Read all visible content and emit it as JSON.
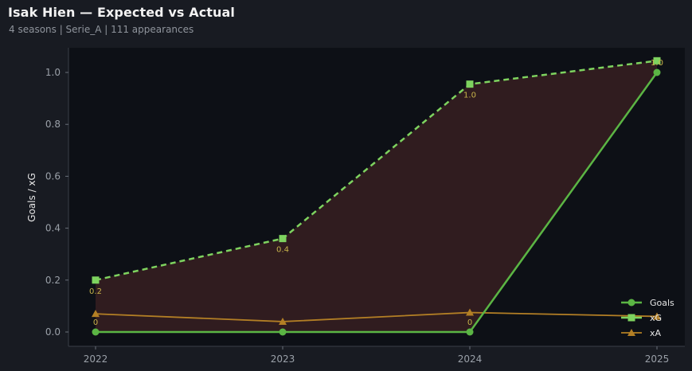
{
  "header": {
    "title": "Isak Hien — Expected vs Actual",
    "subtitle": "4 seasons | Serie_A | 111 appearances"
  },
  "colors": {
    "background": "#181b22",
    "plot_background": "#0d1016",
    "goals": "#5bb544",
    "xg": "#7ed35f",
    "xa": "#b37f25",
    "gap_fill": "#3a1f1f",
    "label_yellow": "#c7b34a"
  },
  "chart_data": {
    "type": "line",
    "title": "Isak Hien — Expected vs Actual",
    "subtitle": "4 seasons | Serie_A | 111 appearances",
    "xlabel": "",
    "ylabel": "Goals / xG",
    "categories": [
      "2022",
      "2023",
      "2024",
      "2025"
    ],
    "ylim": [
      -0.05,
      1.1
    ],
    "yticks": [
      0.0,
      0.2,
      0.4,
      0.6,
      0.8,
      1.0
    ],
    "ytick_labels": [
      "0.0",
      "0.2",
      "0.4",
      "0.6",
      "0.8",
      "1.0"
    ],
    "grid": false,
    "legend_position": "bottom-right",
    "series": [
      {
        "name": "Goals",
        "values": [
          0,
          0,
          0,
          1
        ],
        "style": "solid",
        "marker": "circle",
        "labels": [
          "0",
          "",
          "0",
          "1.0"
        ]
      },
      {
        "name": "xG",
        "values": [
          0.2,
          0.36,
          0.955,
          1.045
        ],
        "style": "dashed",
        "marker": "square",
        "labels": [
          "0.2",
          "0.4",
          "1.0",
          ""
        ]
      },
      {
        "name": "xA",
        "values": [
          0.07,
          0.04,
          0.075,
          0.06
        ],
        "style": "solid",
        "marker": "triangle",
        "labels": [
          "",
          "",
          "",
          ""
        ]
      }
    ],
    "fill_between": [
      "Goals",
      "xG"
    ]
  }
}
